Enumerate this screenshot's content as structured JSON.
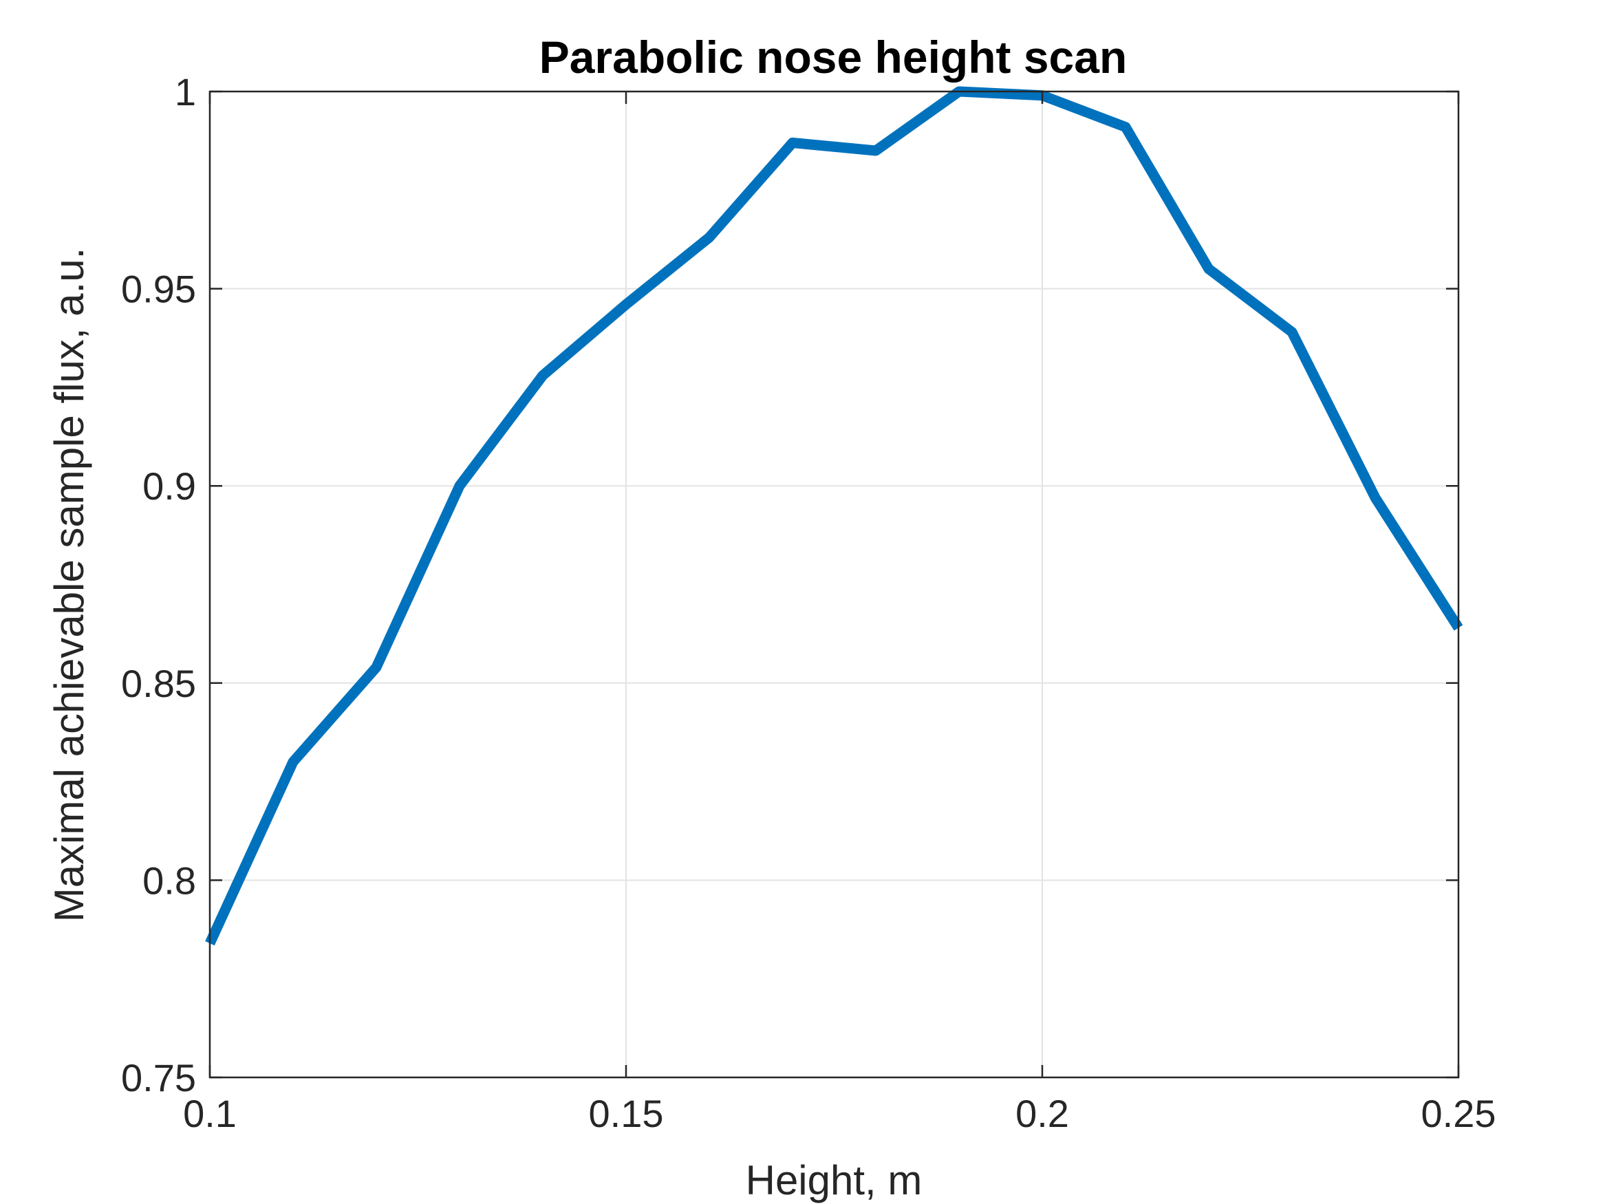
{
  "chart_data": {
    "type": "line",
    "title": "Parabolic nose height scan",
    "xlabel": "Height, m",
    "ylabel": "Maximal achievable sample flux, a.u.",
    "xlim": [
      0.1,
      0.25
    ],
    "ylim": [
      0.75,
      1.0
    ],
    "xticks": [
      "0.1",
      "0.15",
      "0.2",
      "0.25"
    ],
    "yticks": [
      "0.75",
      "0.8",
      "0.85",
      "0.9",
      "0.95",
      "1"
    ],
    "grid": true,
    "series": [
      {
        "color": "#0072bd",
        "x": [
          0.1,
          0.11,
          0.12,
          0.13,
          0.14,
          0.15,
          0.16,
          0.17,
          0.18,
          0.19,
          0.2,
          0.21,
          0.22,
          0.23,
          0.24,
          0.25
        ],
        "y": [
          0.784,
          0.83,
          0.854,
          0.9,
          0.928,
          0.946,
          0.963,
          0.987,
          0.985,
          1.0,
          0.999,
          0.991,
          0.955,
          0.939,
          0.897,
          0.864
        ]
      }
    ]
  }
}
